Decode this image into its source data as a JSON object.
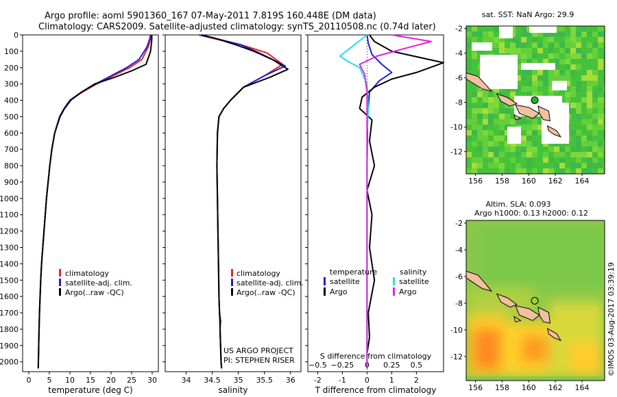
{
  "header": {
    "line1": "Argo profile: aoml 5901360_167 07-May-2011 7.819S 160.448E (DM data)",
    "line2": "Climatology: CARS2009. Satellite-adjusted climatology: synTS_20110508.nc (0.74d later)"
  },
  "side_text": "©IMOS 03-Aug-2017 03:39:19",
  "project": {
    "line1": "US ARGO PROJECT",
    "line2": "PI: STEPHEN RISER"
  },
  "colors": {
    "climatology": "#e8201a",
    "satellite": "#1c1cdc",
    "argo": "#000000",
    "argo_s": "#e020e0",
    "satellite_s": "#20e0e8"
  },
  "chart_data": [
    {
      "type": "line",
      "xlabel": "temperature (deg C)",
      "ylabel": "",
      "xlim": [
        -1.5,
        31.5
      ],
      "ylim": [
        2060,
        0
      ],
      "xticks": [
        0,
        5,
        10,
        15,
        20,
        25,
        30
      ],
      "yticks": [
        0,
        100,
        200,
        300,
        400,
        500,
        600,
        700,
        800,
        900,
        1000,
        1100,
        1200,
        1300,
        1400,
        1500,
        1600,
        1700,
        1800,
        1900,
        2000
      ],
      "legend": [
        "climatology",
        "satellite-adj. clim.",
        "Argo(..raw -QC)"
      ],
      "series": [
        {
          "name": "climatology",
          "color": "#e8201a",
          "x": [
            29.8,
            29.6,
            29.0,
            27.5,
            24.5,
            20.5,
            16.5,
            13.0,
            10.0,
            8.6,
            7.5,
            6.3,
            5.6,
            5.1,
            4.7,
            4.3,
            4.0,
            3.7,
            3.4,
            3.1,
            2.9,
            2.75,
            2.6,
            2.45,
            2.3
          ],
          "y": [
            0,
            25,
            75,
            150,
            200,
            250,
            300,
            350,
            400,
            450,
            500,
            600,
            700,
            800,
            900,
            1000,
            1100,
            1200,
            1300,
            1400,
            1500,
            1600,
            1700,
            1850,
            2040
          ]
        },
        {
          "name": "satellite-adj. clim.",
          "color": "#1c1cdc",
          "x": [
            29.6,
            29.4,
            28.7,
            26.8,
            23.8,
            20.0,
            16.2,
            12.8,
            10.0,
            8.6,
            7.5,
            6.3,
            5.6,
            5.1,
            4.7,
            4.3,
            4.0,
            3.7,
            3.4,
            3.1,
            2.9,
            2.75,
            2.6,
            2.45,
            2.3
          ],
          "y": [
            0,
            25,
            75,
            150,
            200,
            250,
            300,
            350,
            400,
            450,
            500,
            600,
            700,
            800,
            900,
            1000,
            1100,
            1200,
            1300,
            1400,
            1500,
            1600,
            1700,
            1850,
            2040
          ]
        },
        {
          "name": "Argo(..raw -QC)",
          "color": "#000000",
          "x": [
            29.9,
            29.9,
            29.6,
            28.5,
            25.0,
            20.8,
            16.0,
            12.8,
            10.2,
            8.7,
            7.6,
            6.3,
            5.6,
            5.1,
            4.7,
            4.3,
            4.0,
            3.7,
            3.4,
            3.1,
            2.9,
            2.75,
            2.6,
            2.45,
            2.3
          ],
          "y": [
            0,
            30,
            100,
            180,
            220,
            260,
            300,
            350,
            400,
            450,
            500,
            600,
            700,
            800,
            900,
            1000,
            1100,
            1200,
            1300,
            1400,
            1500,
            1600,
            1700,
            1850,
            2040
          ]
        }
      ]
    },
    {
      "type": "line",
      "xlabel": "salinity",
      "ylabel": "",
      "xlim": [
        33.6,
        36.2
      ],
      "ylim": [
        2060,
        0
      ],
      "xticks": [
        34,
        34.5,
        35,
        35.5,
        36
      ],
      "legend": [
        "climatology",
        "satellite-adj. clim.",
        "Argo(..raw -QC)"
      ],
      "series": [
        {
          "name": "climatology",
          "color": "#e8201a",
          "x": [
            34.25,
            34.5,
            35.05,
            35.55,
            35.85,
            35.5,
            35.1,
            34.85,
            34.72,
            34.63,
            34.6,
            34.59,
            34.6,
            34.61,
            34.62,
            34.63,
            34.64,
            34.65,
            34.66,
            34.67,
            34.68
          ],
          "y": [
            0,
            20,
            60,
            110,
            180,
            250,
            320,
            400,
            450,
            500,
            600,
            800,
            1000,
            1200,
            1400,
            1600,
            1700,
            1800,
            1900,
            2000,
            2040
          ]
        },
        {
          "name": "satellite-adj. clim.",
          "color": "#1c1cdc",
          "x": [
            34.25,
            34.55,
            35.05,
            35.4,
            35.9,
            35.5,
            35.1,
            34.85,
            34.72,
            34.63,
            34.6,
            34.59,
            34.6,
            34.61,
            34.62,
            34.63,
            34.64,
            34.65,
            34.66,
            34.67,
            34.68
          ],
          "y": [
            0,
            20,
            60,
            110,
            190,
            250,
            320,
            400,
            450,
            500,
            600,
            800,
            1000,
            1200,
            1400,
            1600,
            1700,
            1800,
            1900,
            2000,
            2040
          ]
        },
        {
          "name": "Argo(..raw -QC)",
          "color": "#000000",
          "x": [
            34.3,
            34.55,
            34.95,
            35.3,
            35.65,
            35.95,
            35.6,
            35.1,
            34.85,
            34.72,
            34.63,
            34.6,
            34.59,
            34.6,
            34.61,
            34.62,
            34.63,
            34.64,
            34.66,
            34.65,
            34.67,
            34.68
          ],
          "y": [
            0,
            20,
            60,
            100,
            150,
            210,
            260,
            320,
            400,
            450,
            500,
            600,
            800,
            1000,
            1200,
            1400,
            1600,
            1700,
            1750,
            1800,
            2000,
            2040
          ]
        }
      ]
    },
    {
      "type": "line",
      "xlabel": "T difference from climatology",
      "x2label": "S difference from climatology",
      "ylabel": "",
      "xlim": [
        -2.4,
        3.1
      ],
      "ylim": [
        2060,
        0
      ],
      "xticks": [
        -2,
        -1,
        0,
        1,
        2
      ],
      "x2ticks": [
        -0.5,
        -0.25,
        0,
        0.25,
        0.5
      ],
      "x2tick_labels": [
        "−0.5",
        "−0.25",
        "0",
        "0.25",
        "0.5"
      ],
      "legend_headers": [
        "temperature",
        "salinity"
      ],
      "legend": [
        "satellite",
        "Argo",
        "satellite",
        "Argo"
      ],
      "series": [
        {
          "name": "satellite",
          "color": "#1c1cdc",
          "x": [
            0.0,
            0.05,
            0.2,
            0.6,
            1.0,
            0.5,
            0.1,
            0.05,
            0.0,
            0.02,
            0.0,
            0.0,
            0.0,
            0.0,
            0.0,
            0.0,
            0.0
          ],
          "y": [
            0,
            50,
            120,
            180,
            230,
            280,
            350,
            450,
            500,
            600,
            800,
            1000,
            1200,
            1400,
            1600,
            1800,
            2040
          ]
        },
        {
          "name": "Argo",
          "color": "#000000",
          "x": [
            0.1,
            0.3,
            1.0,
            3.1,
            2.0,
            1.0,
            0.3,
            -0.2,
            -0.3,
            0.2,
            0.1,
            0.3,
            0.0,
            0.2,
            0.1,
            0.3,
            0.05,
            0.1,
            0.0,
            0.0
          ],
          "y": [
            0,
            40,
            100,
            170,
            230,
            270,
            320,
            380,
            450,
            520,
            650,
            800,
            950,
            1100,
            1300,
            1500,
            1700,
            1850,
            1950,
            2040
          ]
        },
        {
          "name": "satellite (salinity)",
          "color": "#20e0e8",
          "x": [
            0.0,
            -1.1,
            -0.8,
            -0.3,
            0.0,
            0.05,
            0.0,
            0.0,
            0.0,
            0.0,
            0.0,
            0.0,
            0.0
          ],
          "y": [
            0,
            130,
            160,
            200,
            300,
            450,
            600,
            800,
            1000,
            1300,
            1600,
            1900,
            2040
          ]
        },
        {
          "name": "Argo (salinity)",
          "color": "#e020e0",
          "x": [
            1.0,
            2.6,
            1.6,
            0.4,
            -0.3,
            -0.1,
            0.0,
            0.0,
            0.0,
            0.0,
            0.0,
            0.0
          ],
          "y": [
            0,
            40,
            80,
            130,
            180,
            240,
            350,
            500,
            800,
            1200,
            1700,
            2040
          ]
        }
      ]
    },
    {
      "type": "heatmap",
      "title": "sat. SST: NaN Argo: 29.9",
      "xlim": [
        155.3,
        165.7
      ],
      "ylim": [
        -13.8,
        -1.8
      ],
      "xticks": [
        156,
        158,
        160,
        162,
        164
      ],
      "yticks": [
        -2,
        -4,
        -6,
        -8,
        -10,
        -12
      ],
      "argo_position": {
        "lon": 160.448,
        "lat": -7.819
      }
    },
    {
      "type": "heatmap",
      "title_line1": "Altim. SLA: 0.093",
      "title_line2": "Argo h1000: 0.13 h2000: 0.12",
      "xlim": [
        155.3,
        165.7
      ],
      "ylim": [
        -13.8,
        -1.8
      ],
      "xticks": [
        156,
        158,
        160,
        162,
        164
      ],
      "yticks": [
        -2,
        -4,
        -6,
        -8,
        -10,
        -12
      ],
      "argo_position": {
        "lon": 160.448,
        "lat": -7.819
      }
    }
  ]
}
